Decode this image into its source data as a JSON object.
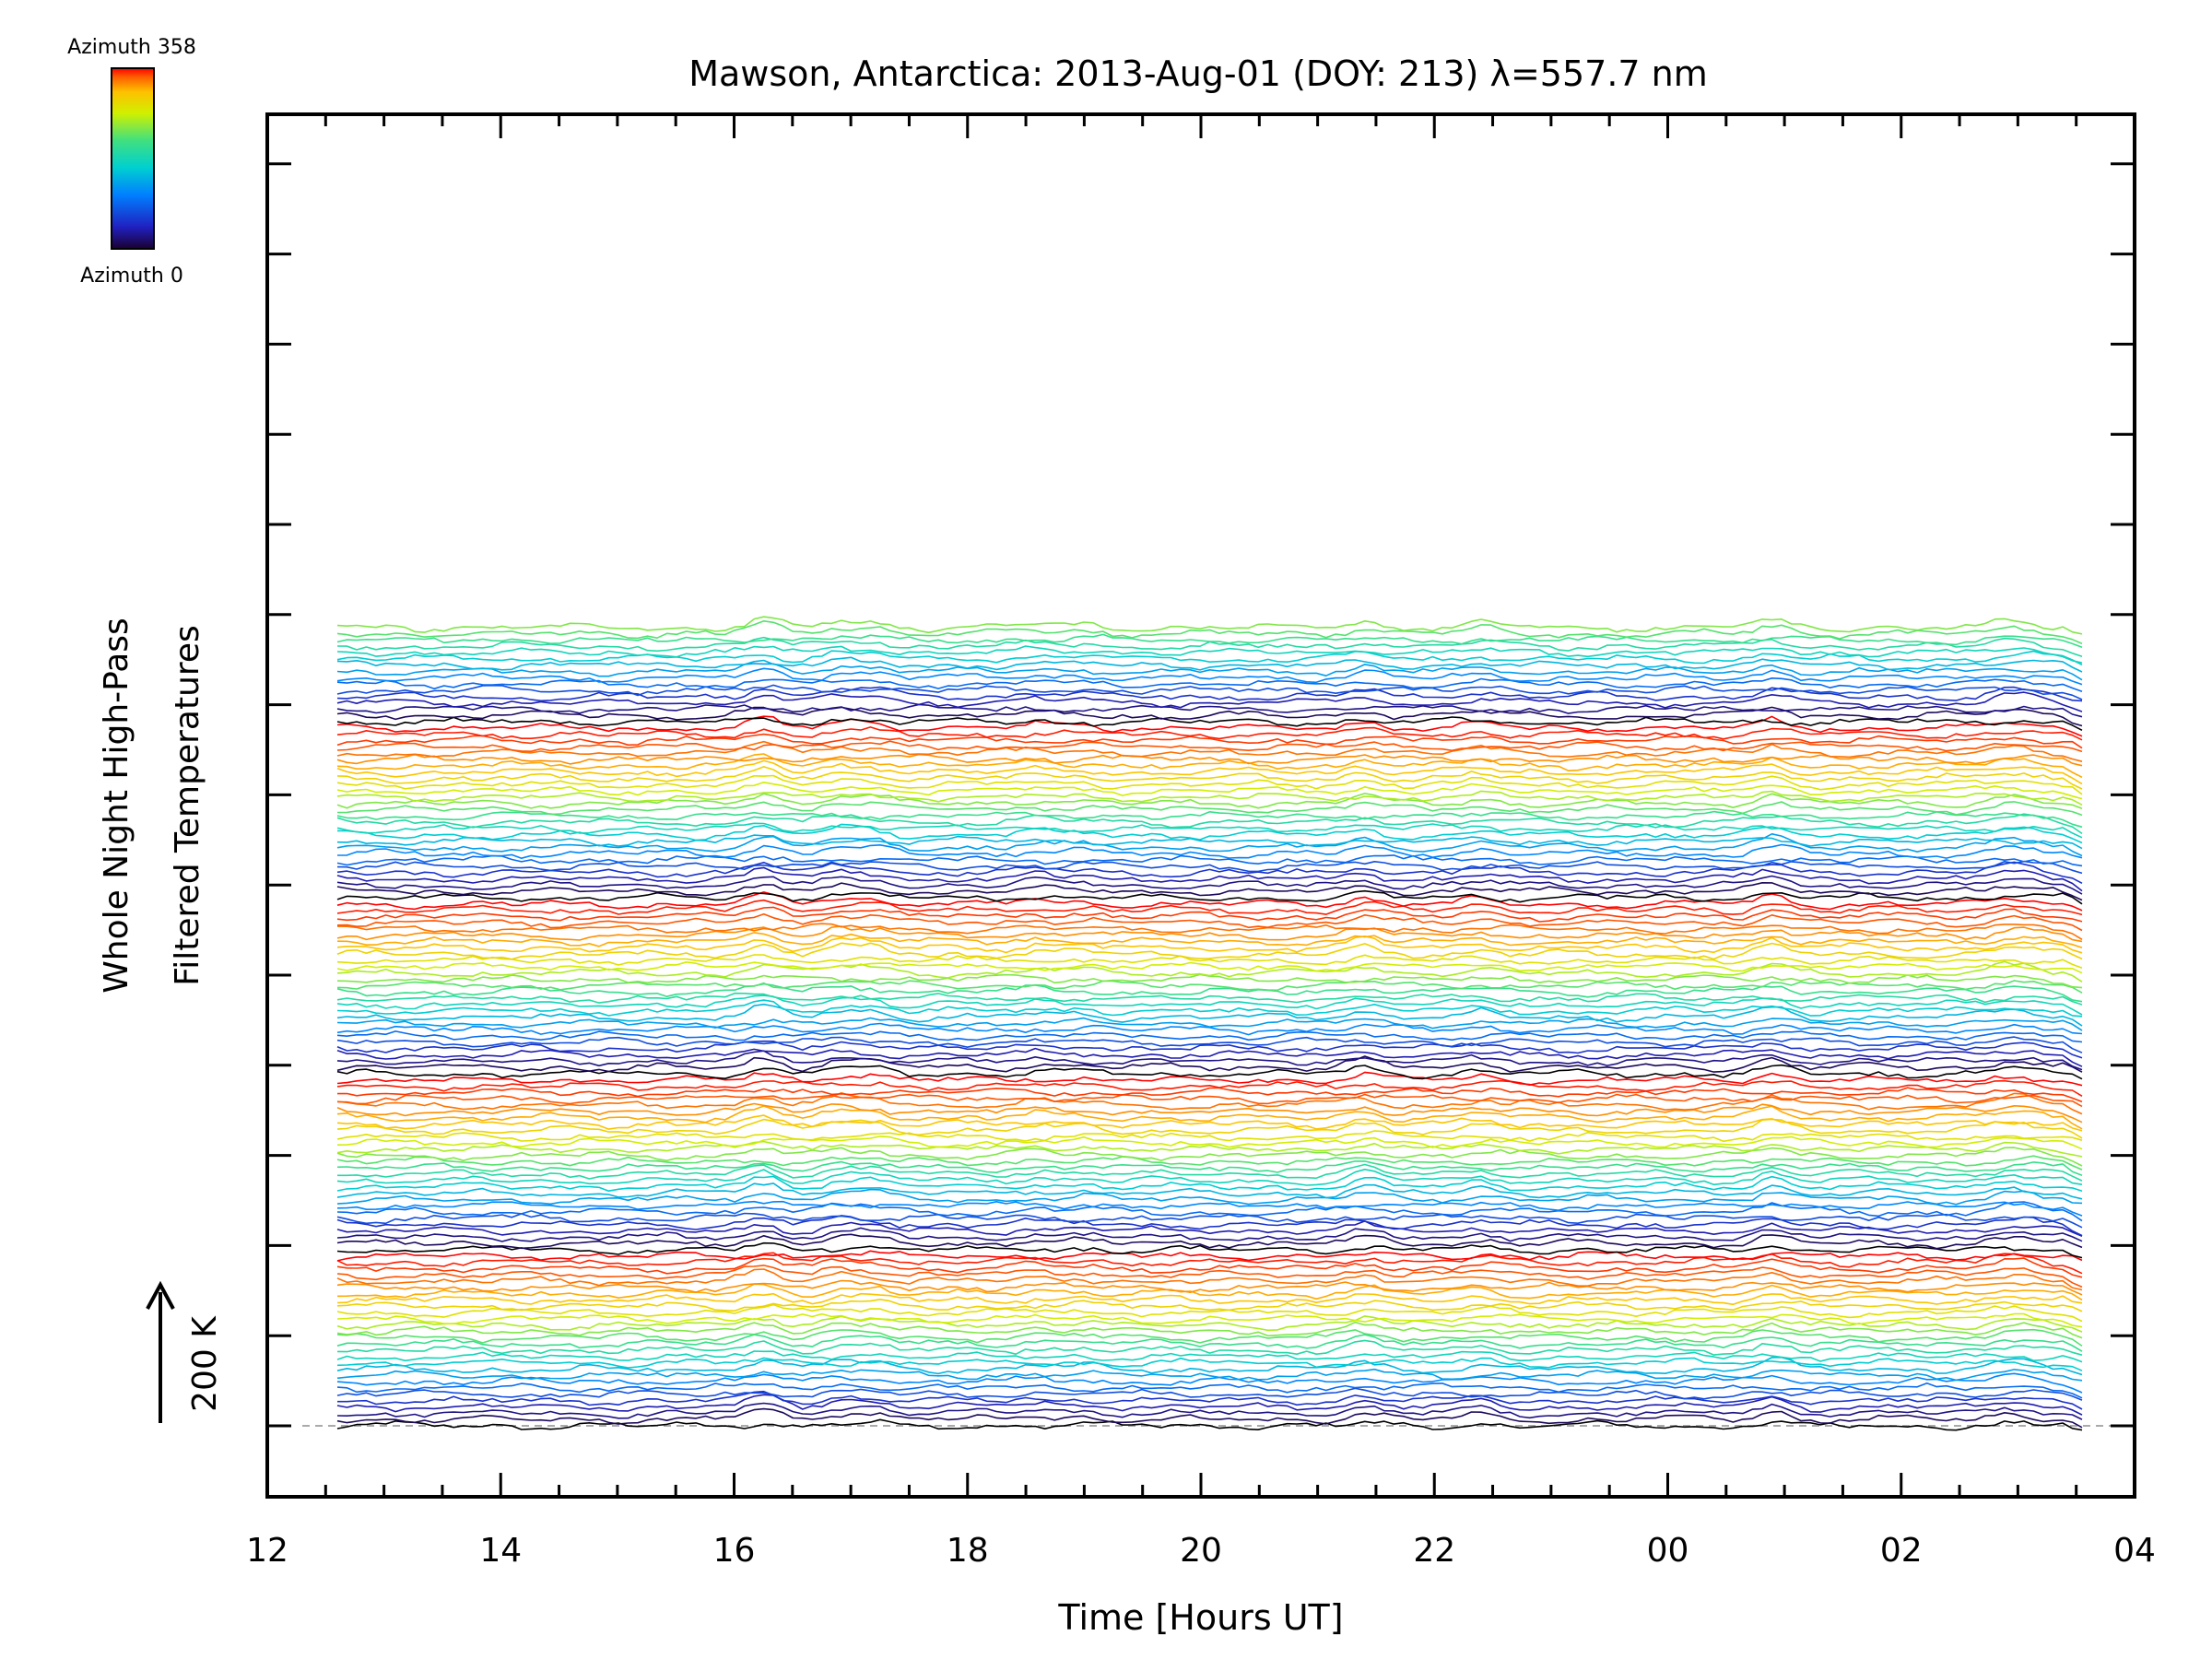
{
  "chart_data": {
    "type": "line",
    "title": "Mawson, Antarctica: 2013-Aug-01 (DOY: 213) λ=557.7 nm",
    "xlabel": "Time [Hours UT]",
    "ylabel_line1": "Whole Night High-Pass",
    "ylabel_line2": "Filtered Temperatures",
    "x_tick_labels": [
      "12",
      "14",
      "16",
      "18",
      "20",
      "22",
      "00",
      "02",
      "04"
    ],
    "x_range_hours_since_12UT": [
      0,
      16
    ],
    "trace_time_range_hours_since_12UT": [
      0.6,
      15.55
    ],
    "scale_bar_label": "200 K",
    "colorbar": {
      "max_label": "Azimuth 358",
      "min_label": "Azimuth 0",
      "azimuth_range_deg": [
        0,
        358
      ],
      "colormap": [
        "#1a0030",
        "#2020c0",
        "#0080ff",
        "#00d0d0",
        "#40e080",
        "#d0f000",
        "#ffc000",
        "#ff6000",
        "#ff0000"
      ]
    },
    "trace_count": 128,
    "traces_per_colormap_cycle": 28,
    "baseline_dashed": true,
    "common_features_hours_since_12UT": [
      {
        "t": 4.25,
        "amplitude_K": 60
      },
      {
        "t": 4.9,
        "amplitude_K": 45
      },
      {
        "t": 5.2,
        "amplitude_K": 40
      },
      {
        "t": 6.6,
        "amplitude_K": 25
      },
      {
        "t": 7.0,
        "amplitude_K": 20
      },
      {
        "t": 9.4,
        "amplitude_K": 45
      },
      {
        "t": 10.4,
        "amplitude_K": 30
      },
      {
        "t": 12.9,
        "amplitude_K": 55
      },
      {
        "t": 14.9,
        "amplitude_K": 35
      },
      {
        "t": 15.1,
        "amplitude_K": 25
      }
    ]
  }
}
